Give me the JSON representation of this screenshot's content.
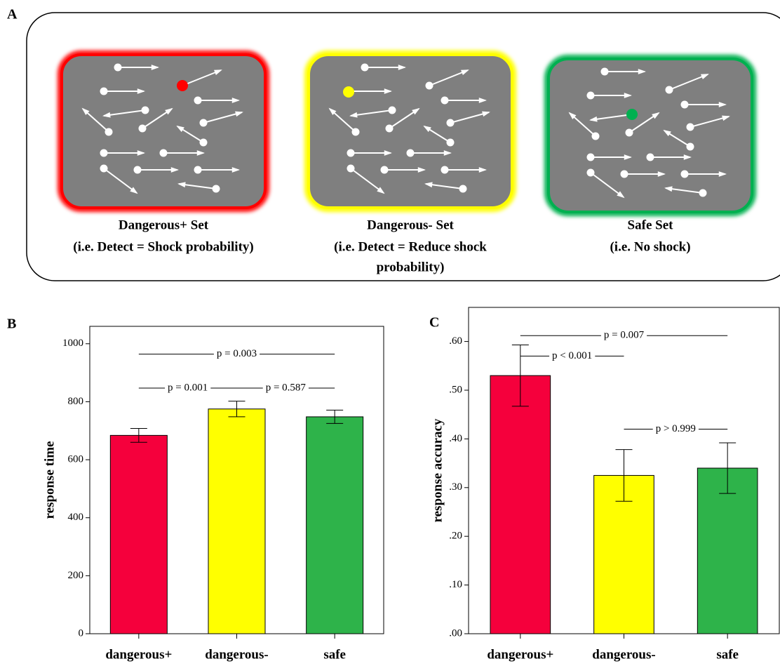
{
  "panel_a": {
    "label": "A",
    "sets": [
      {
        "title": "Dangerous+ Set",
        "lines": [
          "(i.e. Detect = Shock probability)"
        ],
        "color": "#ff0000"
      },
      {
        "title": "Dangerous- Set",
        "lines": [
          "(i.e. Detect = Reduce shock",
          "probability)"
        ],
        "color": "#ffff00"
      },
      {
        "title": "Safe Set",
        "lines": [
          "(i.e. No shock)"
        ],
        "color": "#00b050"
      }
    ]
  },
  "chart_data": [
    {
      "type": "bar",
      "panel_label": "B",
      "ylabel": "response time",
      "categories": [
        "dangerous+",
        "dangerous-",
        "safe"
      ],
      "values": [
        684,
        775,
        748
      ],
      "errors": [
        24,
        27,
        23
      ],
      "colors": [
        "#f5003c",
        "#ffff00",
        "#2eb34a"
      ],
      "ylim": [
        0,
        1060
      ],
      "yticks": [
        0,
        200,
        400,
        600,
        800,
        1000
      ],
      "annotations": [
        {
          "text": "p = 0.003",
          "from": "dangerous+",
          "to": "safe",
          "y": 964
        },
        {
          "text": "p = 0.001",
          "from": "dangerous+",
          "to": "dangerous-",
          "y": 847
        },
        {
          "text": "p = 0.587",
          "from": "dangerous-",
          "to": "safe",
          "y": 847
        }
      ]
    },
    {
      "type": "bar",
      "panel_label": "C",
      "ylabel": "response accuracy",
      "categories": [
        "dangerous+",
        "dangerous-",
        "safe"
      ],
      "values": [
        0.53,
        0.325,
        0.34
      ],
      "errors": [
        0.063,
        0.053,
        0.052
      ],
      "colors": [
        "#f5003c",
        "#ffff00",
        "#2eb34a"
      ],
      "ylim": [
        0,
        0.67
      ],
      "yticks": [
        {
          "value": 0,
          "label": ".00"
        },
        {
          "value": 0.1,
          "label": ".10"
        },
        {
          "value": 0.2,
          "label": ".20"
        },
        {
          "value": 0.3,
          "label": ".30"
        },
        {
          "value": 0.4,
          "label": ".40"
        },
        {
          "value": 0.5,
          "label": ".50"
        },
        {
          "value": 0.6,
          "label": ".60"
        }
      ],
      "annotations": [
        {
          "text": "p = 0.007",
          "from": "dangerous+",
          "to": "safe",
          "y": 0.612
        },
        {
          "text": "p < 0.001",
          "from": "dangerous+",
          "to": "dangerous-",
          "y": 0.57
        },
        {
          "text": "p > 0.999",
          "from": "dangerous-",
          "to": "safe",
          "y": 0.42
        }
      ]
    }
  ]
}
